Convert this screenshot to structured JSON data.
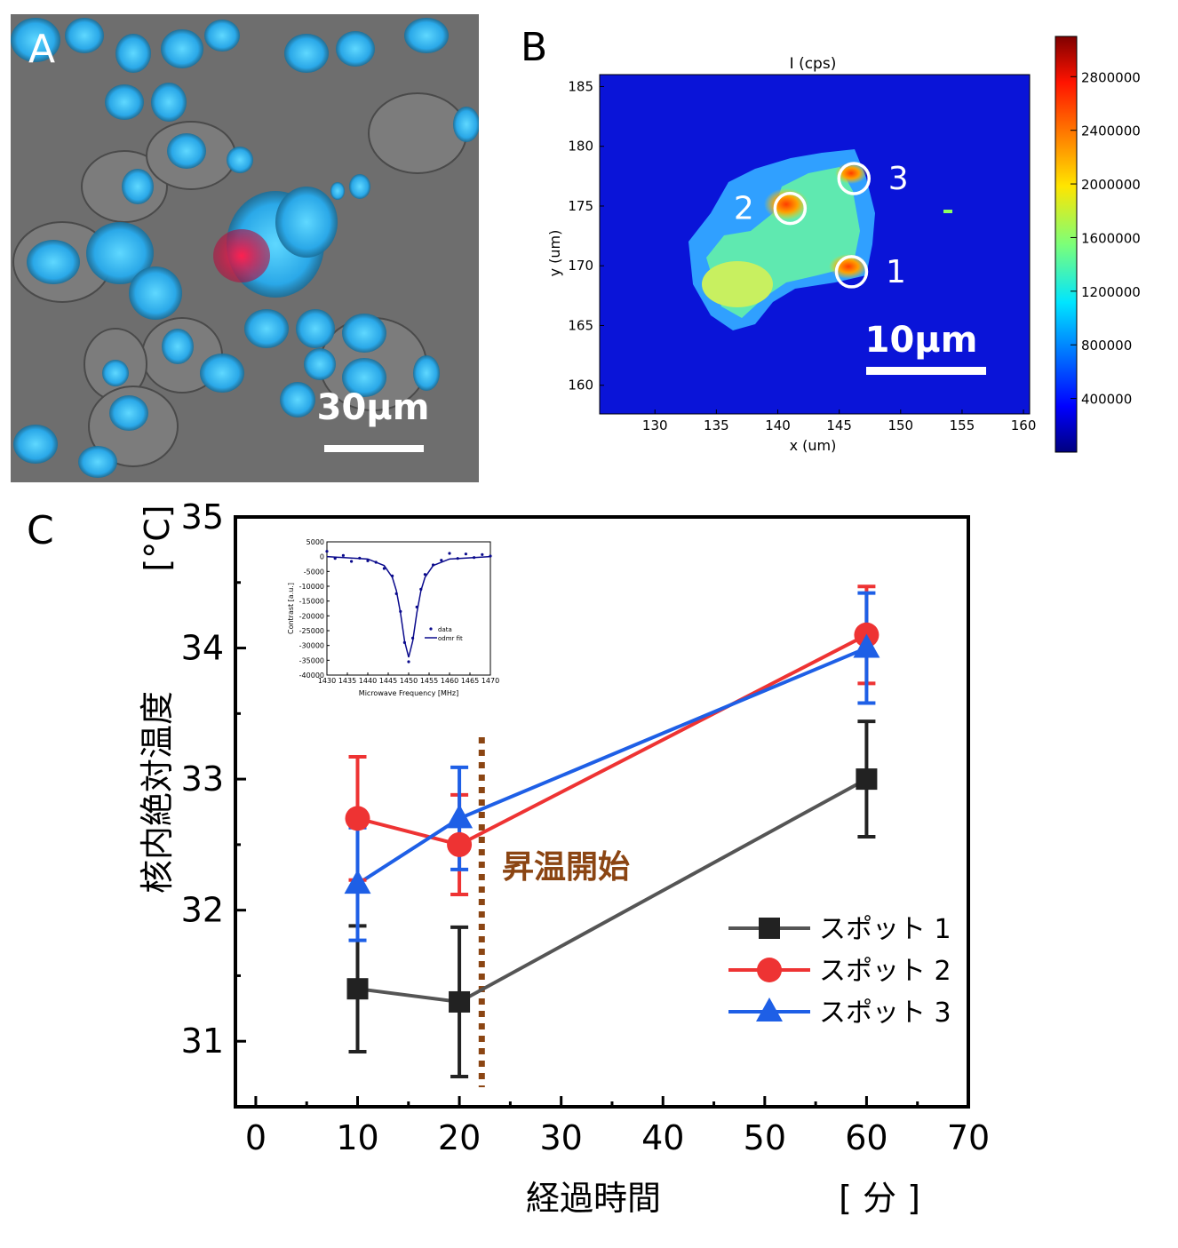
{
  "panels": {
    "a": {
      "letter": "A",
      "scale_bar_label": "30μm"
    },
    "b": {
      "letter": "B",
      "title": "I (cps)",
      "xlabel": "x (um)",
      "ylabel": "y (um)",
      "x_ticks": [
        "130",
        "135",
        "140",
        "145",
        "150",
        "155",
        "160"
      ],
      "y_ticks": [
        "185",
        "180",
        "175",
        "170",
        "165",
        "160"
      ],
      "colorbar_ticks": [
        "2800000",
        "2400000",
        "2000000",
        "1600000",
        "1200000",
        "800000",
        "400000"
      ],
      "scale_bar_label": "10μm",
      "spots": [
        {
          "label": "1",
          "x_um": 146,
          "y_um": 169.5
        },
        {
          "label": "2",
          "x_um": 141,
          "y_um": 174.8
        },
        {
          "label": "3",
          "x_um": 146.2,
          "y_um": 177.3
        }
      ]
    },
    "c": {
      "letter": "C",
      "annotation": "昇温開始",
      "inset": {
        "x_ticks": [
          "1430",
          "1435",
          "1440",
          "1445",
          "1450",
          "1455",
          "1460",
          "1465",
          "1470"
        ],
        "y_ticks": [
          "5000",
          "0",
          "-5000",
          "-10000",
          "-15000",
          "-20000",
          "-25000",
          "-30000",
          "-35000",
          "-40000"
        ],
        "xlabel": "Microwave Frequency [MHz]",
        "ylabel": "Contrast [a.u.]",
        "legend": [
          "data",
          "odmr fit"
        ]
      }
    }
  },
  "colors": {
    "spot1": "#222222",
    "spot2": "#ee3333",
    "spot3": "#1e5fe6",
    "spot1_line": "#555555",
    "annotation": "#8B4513",
    "inset": "#0a0a8c"
  },
  "chart_data": [
    {
      "type": "line",
      "title": "",
      "xlabel": "経過時間",
      "xunit": "[ 分 ]",
      "ylabel": "核内絶対温度",
      "yunit": "[°C]",
      "xlim": [
        -2,
        70
      ],
      "ylim": [
        30.5,
        35
      ],
      "x_ticks": [
        0,
        10,
        20,
        30,
        40,
        50,
        60,
        70
      ],
      "y_ticks": [
        31,
        32,
        33,
        34,
        35
      ],
      "x": [
        10,
        20,
        60
      ],
      "series": [
        {
          "name": "スポット 1",
          "marker": "square",
          "values": [
            31.4,
            31.3,
            33.0
          ],
          "errors": [
            0.48,
            0.57,
            0.44
          ]
        },
        {
          "name": "スポット 2",
          "marker": "circle",
          "values": [
            32.7,
            32.5,
            34.1
          ],
          "errors": [
            0.47,
            0.38,
            0.37
          ]
        },
        {
          "name": "スポット 3",
          "marker": "triangle",
          "values": [
            32.2,
            32.7,
            34.0
          ],
          "errors": [
            0.43,
            0.39,
            0.42
          ]
        }
      ],
      "annotations": [
        {
          "text": "昇温開始",
          "x": 22.2
        }
      ]
    },
    {
      "type": "line",
      "title": "",
      "xlabel": "Microwave Frequency [MHz]",
      "ylabel": "Contrast [a.u.]",
      "xlim": [
        1430,
        1470
      ],
      "ylim": [
        -40000,
        5000
      ],
      "series": [
        {
          "name": "odmr fit",
          "x": [
            1430,
            1440,
            1444,
            1446,
            1447,
            1448,
            1449,
            1450,
            1451,
            1452,
            1453,
            1454,
            1456,
            1460,
            1470
          ],
          "values": [
            0,
            -800,
            -3000,
            -7000,
            -11500,
            -19000,
            -28500,
            -34000,
            -28500,
            -19000,
            -11500,
            -7000,
            -3000,
            -800,
            0
          ]
        },
        {
          "name": "data",
          "x": [
            1430,
            1432,
            1434,
            1436,
            1438,
            1440,
            1442,
            1444,
            1446,
            1447,
            1448,
            1449,
            1450,
            1451,
            1452,
            1453,
            1454,
            1456,
            1458,
            1460,
            1462,
            1464,
            1466,
            1468,
            1470
          ],
          "values": [
            1800,
            -600,
            400,
            -1600,
            -500,
            -1400,
            -1900,
            -4000,
            -6500,
            -12500,
            -18500,
            -29000,
            -35500,
            -27500,
            -17000,
            -11000,
            -6000,
            -2800,
            -1200,
            1100,
            -600,
            900,
            -300,
            700,
            200
          ]
        }
      ]
    }
  ]
}
